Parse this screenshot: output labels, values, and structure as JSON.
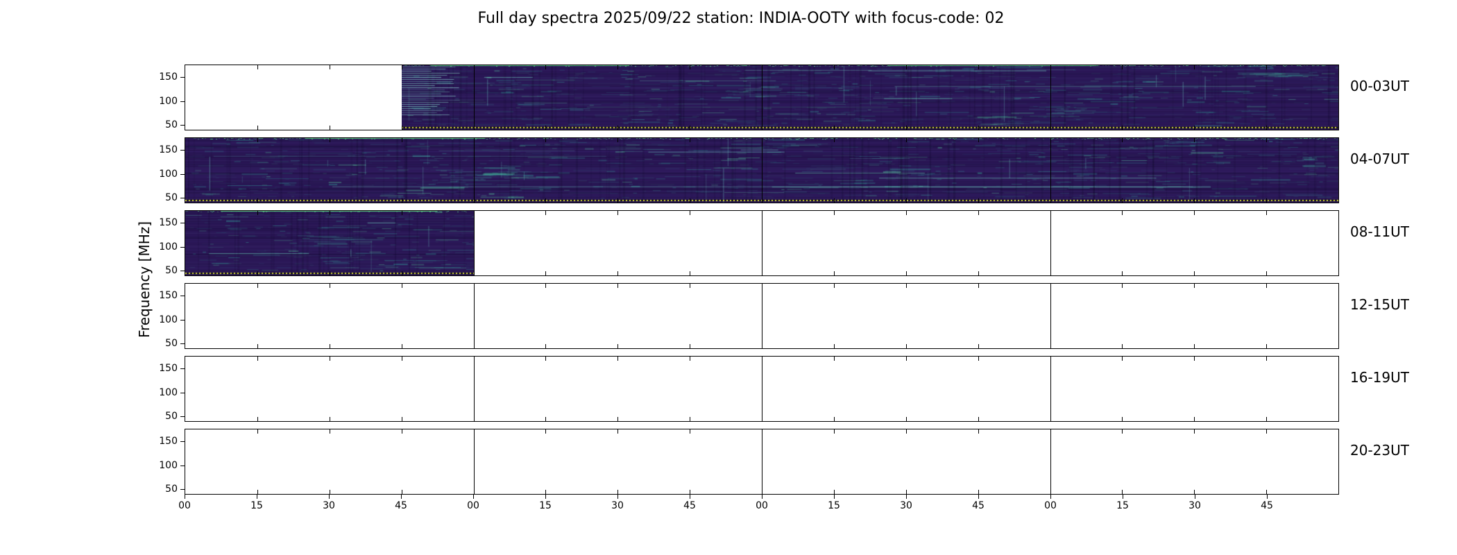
{
  "chart_data": {
    "type": "heatmap",
    "subtype": "radio-spectrogram-daily-overview",
    "title": "Full day spectra 2025/09/22 station: INDIA-OOTY with focus-code: 02",
    "date": "2025/09/22",
    "station": "INDIA-OOTY",
    "focus_code": "02",
    "ylabel": "Frequency [MHz]",
    "ylim": [
      40,
      175
    ],
    "yticks": [
      150,
      100,
      50
    ],
    "hours_per_row": 4,
    "minutes_per_tick": 15,
    "x_tick_labels": [
      "00",
      "15",
      "30",
      "45",
      "00",
      "15",
      "30",
      "45",
      "00",
      "15",
      "30",
      "45",
      "00",
      "15",
      "30",
      "45"
    ],
    "grid": "panel-borders-with-minor-ticks",
    "legend": "none",
    "rows": [
      {
        "label": "00-03UT",
        "hours": "00-03",
        "segments": [
          {
            "from": 0.1875,
            "to": 1.0,
            "ladder_start": true
          }
        ],
        "baseline_dots": true
      },
      {
        "label": "04-07UT",
        "hours": "04-07",
        "segments": [
          {
            "from": 0.0,
            "to": 1.0
          }
        ],
        "baseline_dots": true
      },
      {
        "label": "08-11UT",
        "hours": "08-11",
        "segments": [
          {
            "from": 0.0,
            "to": 0.25
          }
        ],
        "baseline_dots": true
      },
      {
        "label": "12-15UT",
        "hours": "12-15",
        "segments": [],
        "baseline_dots": false
      },
      {
        "label": "16-19UT",
        "hours": "16-19",
        "segments": [],
        "baseline_dots": false
      },
      {
        "label": "20-23UT",
        "hours": "20-23",
        "segments": [],
        "baseline_dots": false
      }
    ],
    "palette": {
      "background": "#ffffff",
      "spectrogram_base": "#2f1a5e",
      "spectrogram_dark": "#1e1145",
      "streak_teal": "#34a89e",
      "bright_green": "#5cd98b",
      "baseline_yellow": "#dede3a",
      "axis": "#000000"
    }
  }
}
